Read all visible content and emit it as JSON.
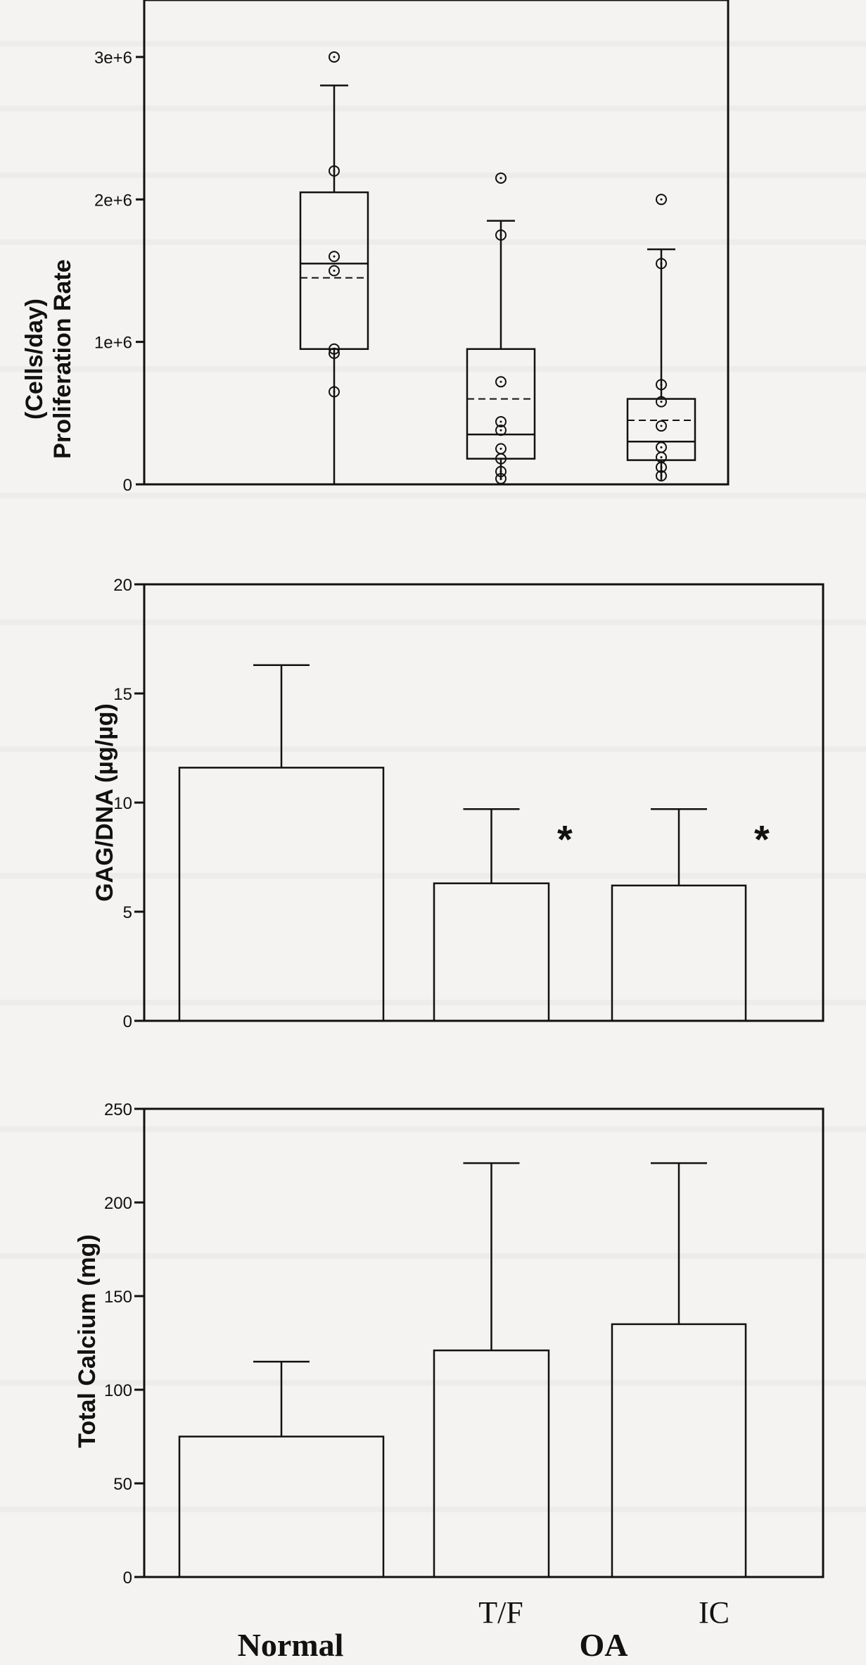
{
  "chart_data": [
    {
      "type": "box",
      "ylabel_line1": "Proliferation Rate",
      "ylabel_line2": "(Cells/day)",
      "ytick_labels": [
        "0",
        "1e+6",
        "2e+6",
        "3e+6"
      ],
      "yticks": [
        0,
        1000000,
        2000000,
        3000000
      ],
      "ylim": [
        0,
        3400000
      ],
      "boxes": [
        {
          "whisker_low": 0,
          "q1": 950000,
          "median": 1550000,
          "mean": 1450000,
          "q3": 2050000,
          "whisker_high": 2800000,
          "points": [
            3000000,
            2200000,
            1600000,
            1500000,
            950000,
            920000,
            650000
          ]
        },
        {
          "whisker_low": 30000,
          "q1": 180000,
          "median": 350000,
          "mean": 600000,
          "q3": 950000,
          "whisker_high": 1850000,
          "points": [
            2150000,
            1750000,
            720000,
            440000,
            380000,
            250000,
            180000,
            90000,
            40000
          ]
        },
        {
          "whisker_low": 30000,
          "q1": 170000,
          "median": 300000,
          "mean": 450000,
          "q3": 600000,
          "whisker_high": 1650000,
          "points": [
            2000000,
            1550000,
            700000,
            580000,
            410000,
            260000,
            190000,
            120000,
            60000
          ]
        }
      ]
    },
    {
      "type": "bar",
      "ylabel": "GAG/DNA (µg/µg)",
      "ytick_labels": [
        "0",
        "5",
        "10",
        "15",
        "20"
      ],
      "yticks": [
        0,
        5,
        10,
        15,
        20
      ],
      "ylim": [
        0,
        20
      ],
      "values": [
        11.6,
        6.3,
        6.2
      ],
      "errors": [
        4.7,
        3.4,
        3.5
      ],
      "annotations": [
        "",
        "*",
        "*"
      ]
    },
    {
      "type": "bar",
      "ylabel": "Total Calcium (mg)",
      "ytick_labels": [
        "0",
        "50",
        "100",
        "150",
        "200",
        "250"
      ],
      "yticks": [
        0,
        50,
        100,
        150,
        200,
        250
      ],
      "ylim": [
        0,
        250
      ],
      "values": [
        75,
        121,
        135
      ],
      "errors": [
        40,
        100,
        86
      ]
    }
  ],
  "categories": [
    "Normal",
    "T/F",
    "IC"
  ],
  "group_labels": {
    "normal": "Normal",
    "oa": "OA"
  }
}
